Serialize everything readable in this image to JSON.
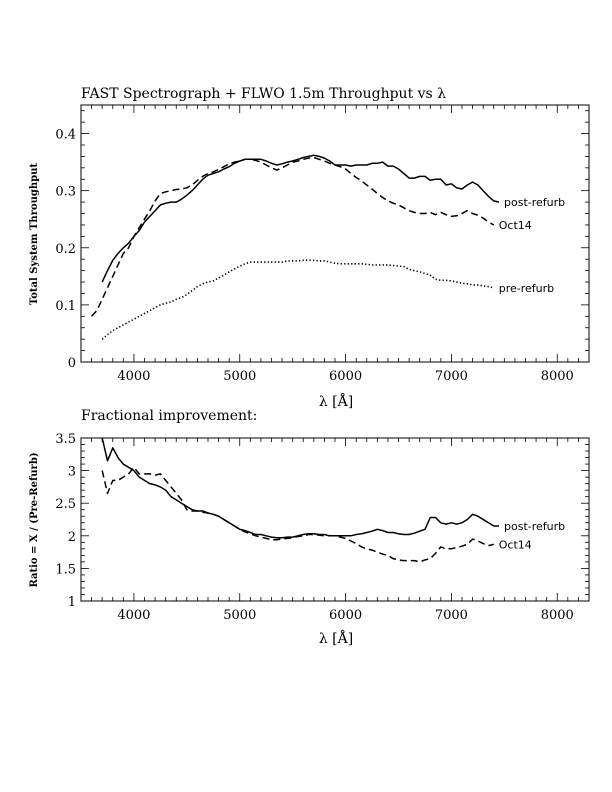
{
  "chart_data": [
    {
      "type": "line",
      "title": "FAST Spectrograph + FLWO 1.5m Throughput vs λ",
      "xlabel": "λ [Å]",
      "ylabel": "Total System Throughput",
      "xlim": [
        3500,
        8300
      ],
      "ylim": [
        0,
        0.45
      ],
      "xticks": [
        4000,
        5000,
        6000,
        7000,
        8000
      ],
      "yticks": [
        0,
        0.1,
        0.2,
        0.3,
        0.4
      ],
      "ytick_labels": [
        "0",
        "0.1",
        "0.2",
        "0.3",
        "0.4"
      ],
      "series": [
        {
          "name": "post-refurb",
          "style": "solid",
          "x": [
            3700,
            3750,
            3800,
            3850,
            3900,
            3950,
            4000,
            4050,
            4100,
            4150,
            4200,
            4250,
            4300,
            4350,
            4400,
            4450,
            4500,
            4550,
            4600,
            4650,
            4700,
            4750,
            4800,
            4850,
            4900,
            4950,
            5000,
            5050,
            5100,
            5150,
            5200,
            5250,
            5300,
            5350,
            5400,
            5450,
            5500,
            5550,
            5600,
            5650,
            5700,
            5750,
            5800,
            5850,
            5900,
            5950,
            6000,
            6050,
            6100,
            6150,
            6200,
            6250,
            6300,
            6350,
            6400,
            6450,
            6500,
            6550,
            6600,
            6650,
            6700,
            6750,
            6800,
            6850,
            6900,
            6950,
            7000,
            7050,
            7100,
            7150,
            7200,
            7250,
            7300,
            7350,
            7400,
            7450
          ],
          "y": [
            0.14,
            0.16,
            0.178,
            0.19,
            0.2,
            0.208,
            0.22,
            0.23,
            0.245,
            0.255,
            0.265,
            0.275,
            0.278,
            0.28,
            0.28,
            0.285,
            0.292,
            0.3,
            0.31,
            0.32,
            0.327,
            0.33,
            0.333,
            0.338,
            0.342,
            0.348,
            0.352,
            0.355,
            0.355,
            0.355,
            0.355,
            0.352,
            0.348,
            0.345,
            0.347,
            0.35,
            0.352,
            0.355,
            0.358,
            0.36,
            0.362,
            0.36,
            0.357,
            0.352,
            0.345,
            0.345,
            0.345,
            0.343,
            0.345,
            0.345,
            0.345,
            0.348,
            0.348,
            0.35,
            0.343,
            0.343,
            0.338,
            0.33,
            0.322,
            0.322,
            0.325,
            0.325,
            0.318,
            0.32,
            0.32,
            0.31,
            0.312,
            0.305,
            0.303,
            0.31,
            0.315,
            0.31,
            0.3,
            0.29,
            0.282,
            0.28
          ]
        },
        {
          "name": "Oct14",
          "style": "dashed",
          "x": [
            3600,
            3650,
            3700,
            3750,
            3800,
            3850,
            3900,
            3950,
            4000,
            4050,
            4100,
            4150,
            4200,
            4250,
            4300,
            4350,
            4400,
            4450,
            4500,
            4550,
            4600,
            4650,
            4700,
            4750,
            4800,
            4850,
            4900,
            4950,
            5000,
            5050,
            5100,
            5150,
            5200,
            5250,
            5300,
            5350,
            5400,
            5450,
            5500,
            5550,
            5600,
            5650,
            5700,
            5750,
            5800,
            5850,
            5900,
            5950,
            6000,
            6050,
            6100,
            6150,
            6200,
            6250,
            6300,
            6350,
            6400,
            6450,
            6500,
            6550,
            6600,
            6650,
            6700,
            6750,
            6800,
            6850,
            6900,
            6950,
            7000,
            7050,
            7100,
            7150,
            7200,
            7250,
            7300,
            7350,
            7400
          ],
          "y": [
            0.08,
            0.09,
            0.11,
            0.13,
            0.15,
            0.17,
            0.19,
            0.2,
            0.22,
            0.235,
            0.25,
            0.265,
            0.282,
            0.295,
            0.298,
            0.3,
            0.302,
            0.303,
            0.305,
            0.31,
            0.318,
            0.325,
            0.33,
            0.333,
            0.337,
            0.342,
            0.347,
            0.35,
            0.352,
            0.355,
            0.355,
            0.353,
            0.35,
            0.345,
            0.34,
            0.336,
            0.34,
            0.345,
            0.35,
            0.352,
            0.355,
            0.357,
            0.358,
            0.355,
            0.352,
            0.348,
            0.345,
            0.342,
            0.338,
            0.33,
            0.323,
            0.317,
            0.31,
            0.303,
            0.295,
            0.288,
            0.282,
            0.278,
            0.275,
            0.27,
            0.265,
            0.262,
            0.26,
            0.26,
            0.262,
            0.258,
            0.262,
            0.258,
            0.255,
            0.256,
            0.26,
            0.265,
            0.26,
            0.257,
            0.252,
            0.245,
            0.24
          ]
        },
        {
          "name": "pre-refurb",
          "style": "dotted",
          "x": [
            3700,
            3750,
            3800,
            3850,
            3900,
            3950,
            4000,
            4050,
            4100,
            4150,
            4200,
            4250,
            4300,
            4350,
            4400,
            4450,
            4500,
            4550,
            4600,
            4650,
            4700,
            4750,
            4800,
            4850,
            4900,
            4950,
            5000,
            5050,
            5100,
            5150,
            5200,
            5250,
            5300,
            5350,
            5400,
            5450,
            5500,
            5550,
            5600,
            5650,
            5700,
            5750,
            5800,
            5850,
            5900,
            5950,
            6000,
            6050,
            6100,
            6150,
            6200,
            6250,
            6300,
            6350,
            6400,
            6450,
            6500,
            6550,
            6600,
            6650,
            6700,
            6750,
            6800,
            6850,
            6900,
            6950,
            7000,
            7050,
            7100,
            7150,
            7200,
            7250,
            7300,
            7350,
            7400
          ],
          "y": [
            0.04,
            0.048,
            0.055,
            0.06,
            0.065,
            0.07,
            0.075,
            0.08,
            0.085,
            0.09,
            0.095,
            0.1,
            0.103,
            0.105,
            0.11,
            0.113,
            0.118,
            0.125,
            0.132,
            0.137,
            0.14,
            0.142,
            0.147,
            0.152,
            0.158,
            0.163,
            0.168,
            0.172,
            0.175,
            0.175,
            0.175,
            0.175,
            0.175,
            0.175,
            0.175,
            0.177,
            0.177,
            0.177,
            0.178,
            0.178,
            0.178,
            0.177,
            0.177,
            0.175,
            0.173,
            0.172,
            0.172,
            0.172,
            0.172,
            0.172,
            0.171,
            0.17,
            0.17,
            0.17,
            0.17,
            0.169,
            0.168,
            0.167,
            0.162,
            0.16,
            0.158,
            0.155,
            0.152,
            0.145,
            0.143,
            0.143,
            0.142,
            0.14,
            0.138,
            0.137,
            0.135,
            0.135,
            0.133,
            0.132,
            0.13
          ]
        }
      ]
    },
    {
      "type": "line",
      "title": "Fractional improvement:",
      "xlabel": "λ [Å]",
      "ylabel": "Ratio = X / (Pre-Refurb)",
      "xlim": [
        3500,
        8300
      ],
      "ylim": [
        1,
        3.5
      ],
      "xticks": [
        4000,
        5000,
        6000,
        7000,
        8000
      ],
      "yticks": [
        1,
        1.5,
        2,
        2.5,
        3,
        3.5
      ],
      "ytick_labels": [
        "1",
        "1.5",
        "2",
        "2.5",
        "3",
        "3.5"
      ],
      "series": [
        {
          "name": "post-refurb",
          "style": "solid",
          "x": [
            3700,
            3750,
            3800,
            3850,
            3900,
            3950,
            4000,
            4050,
            4100,
            4150,
            4200,
            4250,
            4300,
            4350,
            4400,
            4450,
            4500,
            4550,
            4600,
            4650,
            4700,
            4750,
            4800,
            4850,
            4900,
            4950,
            5000,
            5050,
            5100,
            5150,
            5200,
            5250,
            5300,
            5350,
            5400,
            5450,
            5500,
            5550,
            5600,
            5650,
            5700,
            5750,
            5800,
            5850,
            5900,
            5950,
            6000,
            6050,
            6100,
            6150,
            6200,
            6250,
            6300,
            6350,
            6400,
            6450,
            6500,
            6550,
            6600,
            6650,
            6700,
            6750,
            6800,
            6850,
            6900,
            6950,
            7000,
            7050,
            7100,
            7150,
            7200,
            7250,
            7300,
            7350,
            7400,
            7450
          ],
          "y": [
            3.5,
            3.15,
            3.35,
            3.2,
            3.1,
            3.05,
            3.0,
            2.9,
            2.85,
            2.8,
            2.78,
            2.75,
            2.7,
            2.6,
            2.55,
            2.5,
            2.45,
            2.4,
            2.38,
            2.38,
            2.35,
            2.33,
            2.3,
            2.25,
            2.2,
            2.15,
            2.1,
            2.08,
            2.05,
            2.02,
            2.02,
            2.0,
            1.98,
            1.97,
            1.97,
            1.98,
            1.98,
            2.0,
            2.02,
            2.03,
            2.03,
            2.02,
            2.02,
            2.0,
            2.0,
            2.0,
            2.0,
            2.0,
            2.02,
            2.03,
            2.05,
            2.07,
            2.1,
            2.08,
            2.05,
            2.05,
            2.03,
            2.02,
            2.02,
            2.04,
            2.07,
            2.1,
            2.28,
            2.28,
            2.2,
            2.18,
            2.2,
            2.18,
            2.2,
            2.25,
            2.33,
            2.3,
            2.25,
            2.2,
            2.15,
            2.15
          ]
        },
        {
          "name": "Oct14",
          "style": "dashed",
          "x": [
            3700,
            3750,
            3800,
            3850,
            3900,
            3950,
            4000,
            4050,
            4100,
            4150,
            4200,
            4250,
            4300,
            4350,
            4400,
            4450,
            4500,
            4550,
            4600,
            4650,
            4700,
            4750,
            4800,
            4850,
            4900,
            4950,
            5000,
            5050,
            5100,
            5150,
            5200,
            5250,
            5300,
            5350,
            5400,
            5450,
            5500,
            5550,
            5600,
            5650,
            5700,
            5750,
            5800,
            5850,
            5900,
            5950,
            6000,
            6050,
            6100,
            6150,
            6200,
            6250,
            6300,
            6350,
            6400,
            6450,
            6500,
            6550,
            6600,
            6650,
            6700,
            6750,
            6800,
            6850,
            6900,
            6950,
            7000,
            7050,
            7100,
            7150,
            7200,
            7250,
            7300,
            7350,
            7400
          ],
          "y": [
            3.0,
            2.65,
            2.85,
            2.85,
            2.9,
            2.95,
            3.05,
            2.95,
            2.95,
            2.95,
            2.93,
            2.95,
            2.85,
            2.75,
            2.65,
            2.55,
            2.4,
            2.38,
            2.38,
            2.36,
            2.35,
            2.33,
            2.3,
            2.25,
            2.2,
            2.15,
            2.1,
            2.06,
            2.03,
            2.0,
            1.98,
            1.96,
            1.94,
            1.94,
            1.95,
            1.96,
            1.97,
            1.99,
            2.0,
            2.02,
            2.02,
            2.01,
            2.0,
            2.0,
            2.0,
            1.98,
            1.96,
            1.92,
            1.88,
            1.83,
            1.8,
            1.78,
            1.75,
            1.72,
            1.7,
            1.65,
            1.63,
            1.62,
            1.62,
            1.62,
            1.6,
            1.63,
            1.65,
            1.73,
            1.83,
            1.8,
            1.8,
            1.82,
            1.84,
            1.87,
            1.95,
            1.92,
            1.88,
            1.85,
            1.87
          ]
        }
      ]
    }
  ]
}
